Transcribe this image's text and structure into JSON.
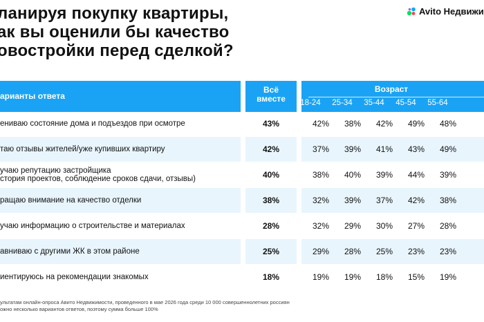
{
  "title_lines": [
    "ланируя покупку квартиры,",
    "ак вы оценили бы качество",
    "овостройки перед сделкой?"
  ],
  "logo": {
    "text": "Avito Недвижим",
    "colors": [
      "#04e061",
      "#ff4053",
      "#965eeb",
      "#0af"
    ]
  },
  "header": {
    "options_label": "арианты ответа",
    "total_label_1": "Всё",
    "total_label_2": "вместе",
    "age_label": "Возраст",
    "age_groups": [
      "18-24",
      "25-34",
      "35-44",
      "45-54",
      "55-64"
    ],
    "color": "#1aa3f4"
  },
  "chart_data": {
    "type": "table",
    "columns": [
      "Всё вместе",
      "18-24",
      "25-34",
      "35-44",
      "45-54",
      "55-64"
    ],
    "rows": [
      {
        "label_lines": [
          "ениваю состояние дома и подъездов при осмотре"
        ],
        "total": "43%",
        "ages": [
          "42%",
          "38%",
          "42%",
          "49%",
          "48%"
        ]
      },
      {
        "label_lines": [
          "таю отзывы жителей/уже купивших квартиру"
        ],
        "total": "42%",
        "ages": [
          "37%",
          "39%",
          "41%",
          "43%",
          "49%"
        ]
      },
      {
        "label_lines": [
          "учаю репутацию застройщика",
          "стория проектов, соблюдение сроков сдачи, отзывы)"
        ],
        "total": "40%",
        "ages": [
          "38%",
          "40%",
          "39%",
          "44%",
          "39%"
        ]
      },
      {
        "label_lines": [
          "ращаю внимание на качество отделки"
        ],
        "total": "38%",
        "ages": [
          "32%",
          "39%",
          "37%",
          "42%",
          "38%"
        ]
      },
      {
        "label_lines": [
          "учаю информацию о строительстве и материалах"
        ],
        "total": "28%",
        "ages": [
          "32%",
          "29%",
          "30%",
          "27%",
          "28%"
        ]
      },
      {
        "label_lines": [
          "авниваю с другими ЖК в этом районе"
        ],
        "total": "25%",
        "ages": [
          "29%",
          "28%",
          "25%",
          "23%",
          "23%"
        ]
      },
      {
        "label_lines": [
          "иентируюсь на рекомендации знакомых"
        ],
        "total": "18%",
        "ages": [
          "19%",
          "19%",
          "18%",
          "15%",
          "19%"
        ]
      }
    ]
  },
  "footnote_lines": [
    "ультатам онлайн-опроса Авито Недвижимости, проведенного в мае 2026 года среди 10 000 совершеннолетних россиян",
    "ожно несколько вариантов ответов, поэтому сумма больше 100%"
  ]
}
